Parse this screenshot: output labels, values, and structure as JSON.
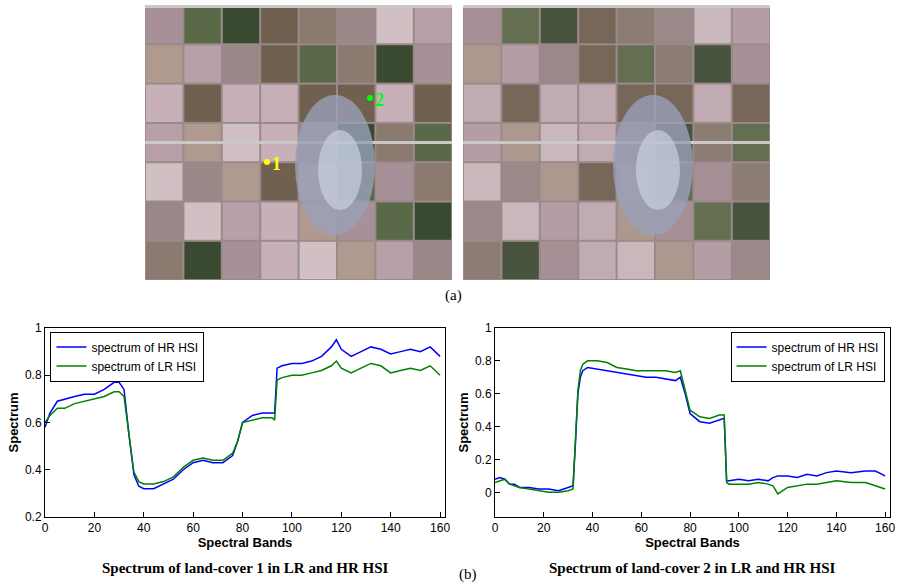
{
  "figure": {
    "panel_labels": [
      "(a)",
      "(b)"
    ],
    "images": [
      {
        "markers": [
          {
            "label": "1",
            "color": "#ffff00"
          },
          {
            "label": "2",
            "color": "#00ff00"
          }
        ]
      },
      {
        "markers": []
      }
    ]
  },
  "chart_data": [
    {
      "type": "line",
      "title": "Spectrum of land-cover 1 in LR and HR HSI",
      "x_label": "Spectral Bands",
      "y_label": "Spectrum",
      "x": [
        0,
        2,
        5,
        8,
        12,
        16,
        20,
        24,
        28,
        30,
        32,
        34,
        36,
        38,
        40,
        44,
        48,
        52,
        56,
        60,
        64,
        68,
        72,
        76,
        78,
        80,
        84,
        88,
        92,
        93,
        94,
        96,
        100,
        104,
        108,
        112,
        116,
        118,
        120,
        124,
        128,
        132,
        136,
        140,
        144,
        148,
        152,
        156,
        160
      ],
      "series": [
        {
          "name": "spectrum of HR HSI",
          "color": "#0000ff",
          "values": [
            0.58,
            0.64,
            0.69,
            0.7,
            0.71,
            0.72,
            0.72,
            0.74,
            0.77,
            0.77,
            0.74,
            0.55,
            0.38,
            0.33,
            0.32,
            0.32,
            0.34,
            0.36,
            0.4,
            0.43,
            0.44,
            0.43,
            0.43,
            0.46,
            0.52,
            0.6,
            0.63,
            0.64,
            0.64,
            0.64,
            0.83,
            0.84,
            0.85,
            0.85,
            0.86,
            0.88,
            0.92,
            0.95,
            0.91,
            0.88,
            0.9,
            0.92,
            0.91,
            0.89,
            0.9,
            0.91,
            0.9,
            0.92,
            0.88
          ]
        },
        {
          "name": "spectrum of LR HSI",
          "color": "#008000",
          "values": [
            0.6,
            0.63,
            0.66,
            0.66,
            0.68,
            0.69,
            0.7,
            0.71,
            0.73,
            0.73,
            0.71,
            0.55,
            0.39,
            0.35,
            0.34,
            0.34,
            0.35,
            0.37,
            0.41,
            0.44,
            0.45,
            0.44,
            0.44,
            0.47,
            0.52,
            0.6,
            0.61,
            0.62,
            0.62,
            0.61,
            0.78,
            0.79,
            0.8,
            0.8,
            0.81,
            0.82,
            0.84,
            0.86,
            0.83,
            0.81,
            0.83,
            0.85,
            0.84,
            0.81,
            0.82,
            0.83,
            0.82,
            0.84,
            0.8
          ]
        }
      ],
      "xlim": [
        0,
        162
      ],
      "xticks": [
        0,
        20,
        40,
        60,
        80,
        100,
        120,
        140,
        160
      ],
      "ylim": [
        0.2,
        1
      ],
      "yticks": [
        0.2,
        0.4,
        0.6,
        0.8,
        1
      ],
      "grid": false,
      "legend": "upper left"
    },
    {
      "type": "line",
      "title": "Spectrum of land-cover 2 in LR and HR HSI",
      "x_label": "Spectral Bands",
      "y_label": "Spectrum",
      "x": [
        0,
        2,
        4,
        6,
        8,
        10,
        14,
        18,
        22,
        26,
        30,
        32,
        33,
        34,
        35,
        36,
        38,
        42,
        46,
        50,
        54,
        58,
        62,
        66,
        70,
        74,
        76,
        78,
        80,
        84,
        88,
        92,
        94,
        95,
        96,
        100,
        104,
        108,
        112,
        114,
        116,
        120,
        124,
        128,
        132,
        136,
        140,
        146,
        152,
        156,
        160
      ],
      "series": [
        {
          "name": "spectrum of HR HSI",
          "color": "#0000ff",
          "values": [
            0.08,
            0.09,
            0.08,
            0.05,
            0.05,
            0.03,
            0.03,
            0.02,
            0.02,
            0.01,
            0.03,
            0.04,
            0.3,
            0.6,
            0.7,
            0.74,
            0.76,
            0.75,
            0.74,
            0.73,
            0.72,
            0.71,
            0.7,
            0.7,
            0.69,
            0.68,
            0.7,
            0.6,
            0.48,
            0.43,
            0.42,
            0.44,
            0.45,
            0.07,
            0.07,
            0.08,
            0.07,
            0.08,
            0.07,
            0.09,
            0.1,
            0.1,
            0.09,
            0.11,
            0.1,
            0.12,
            0.13,
            0.12,
            0.13,
            0.13,
            0.1
          ]
        },
        {
          "name": "spectrum of LR HSI",
          "color": "#008000",
          "values": [
            0.06,
            0.07,
            0.08,
            0.05,
            0.04,
            0.03,
            0.02,
            0.01,
            0.0,
            0.0,
            0.01,
            0.02,
            0.3,
            0.62,
            0.74,
            0.78,
            0.8,
            0.8,
            0.79,
            0.76,
            0.75,
            0.74,
            0.74,
            0.74,
            0.74,
            0.73,
            0.74,
            0.62,
            0.5,
            0.46,
            0.45,
            0.47,
            0.47,
            0.06,
            0.05,
            0.05,
            0.05,
            0.06,
            0.05,
            0.04,
            -0.01,
            0.03,
            0.04,
            0.05,
            0.05,
            0.06,
            0.07,
            0.06,
            0.06,
            0.04,
            0.02
          ]
        }
      ],
      "xlim": [
        0,
        162
      ],
      "xticks": [
        0,
        20,
        40,
        60,
        80,
        100,
        120,
        140,
        160
      ],
      "ylim": [
        -0.15,
        1
      ],
      "yticks": [
        0,
        0.2,
        0.4,
        0.6,
        0.8,
        1
      ],
      "grid": false,
      "legend": "upper right"
    }
  ]
}
